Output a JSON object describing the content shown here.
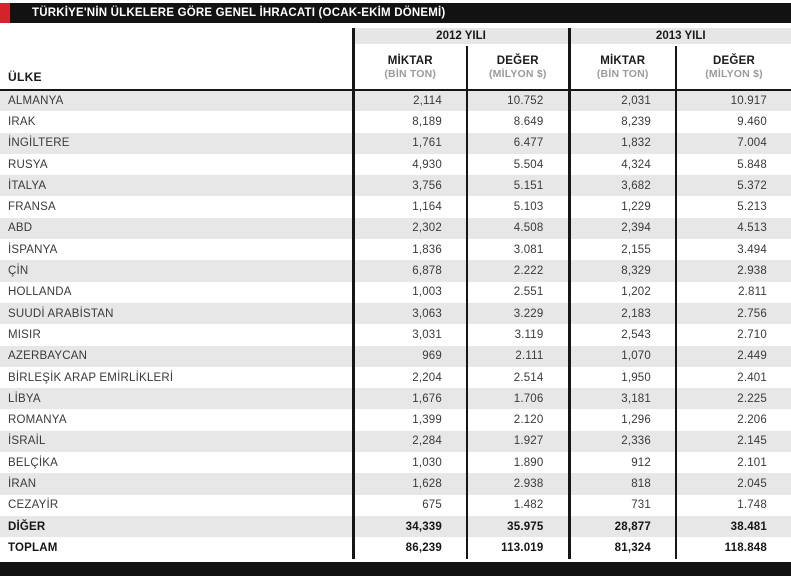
{
  "title": "TÜRKİYE'NİN ÜLKELERE GÖRE GENEL İHRACATI (OCAK-EKİM DÖNEMİ)",
  "table": {
    "country_header": "ÜLKE",
    "year_groups": [
      {
        "label": "2012 YILI"
      },
      {
        "label": "2013 YILI"
      }
    ],
    "sub_headers": {
      "miktar": "MİKTAR",
      "miktar_unit": "(BİN TON)",
      "deger": "DEĞER",
      "deger_unit": "(MİLYON $)"
    },
    "rows": [
      {
        "country": "ALMANYA",
        "m2012": "2,114",
        "d2012": "10.752",
        "m2013": "2,031",
        "d2013": "10.917"
      },
      {
        "country": "IRAK",
        "m2012": "8,189",
        "d2012": "8.649",
        "m2013": "8,239",
        "d2013": "9.460"
      },
      {
        "country": "İNGİLTERE",
        "m2012": "1,761",
        "d2012": "6.477",
        "m2013": "1,832",
        "d2013": "7.004"
      },
      {
        "country": "RUSYA",
        "m2012": "4,930",
        "d2012": "5.504",
        "m2013": "4,324",
        "d2013": "5.848"
      },
      {
        "country": "İTALYA",
        "m2012": "3,756",
        "d2012": "5.151",
        "m2013": "3,682",
        "d2013": "5.372"
      },
      {
        "country": "FRANSA",
        "m2012": "1,164",
        "d2012": "5.103",
        "m2013": "1,229",
        "d2013": "5.213"
      },
      {
        "country": "ABD",
        "m2012": "2,302",
        "d2012": "4.508",
        "m2013": "2,394",
        "d2013": "4.513"
      },
      {
        "country": "İSPANYA",
        "m2012": "1,836",
        "d2012": "3.081",
        "m2013": "2,155",
        "d2013": "3.494"
      },
      {
        "country": "ÇİN",
        "m2012": "6,878",
        "d2012": "2.222",
        "m2013": "8,329",
        "d2013": "2.938"
      },
      {
        "country": "HOLLANDA",
        "m2012": "1,003",
        "d2012": "2.551",
        "m2013": "1,202",
        "d2013": "2.811"
      },
      {
        "country": "SUUDİ ARABİSTAN",
        "m2012": "3,063",
        "d2012": "3.229",
        "m2013": "2,183",
        "d2013": "2.756"
      },
      {
        "country": "MISIR",
        "m2012": "3,031",
        "d2012": "3.119",
        "m2013": "2,543",
        "d2013": "2.710"
      },
      {
        "country": "AZERBAYCAN",
        "m2012": "969",
        "d2012": "2.111",
        "m2013": "1,070",
        "d2013": "2.449"
      },
      {
        "country": "BİRLEŞİK ARAP EMİRLİKLERİ",
        "m2012": "2,204",
        "d2012": "2.514",
        "m2013": "1,950",
        "d2013": "2.401"
      },
      {
        "country": "LİBYA",
        "m2012": "1,676",
        "d2012": "1.706",
        "m2013": "3,181",
        "d2013": "2.225"
      },
      {
        "country": "ROMANYA",
        "m2012": "1,399",
        "d2012": "2.120",
        "m2013": "1,296",
        "d2013": "2.206"
      },
      {
        "country": "İSRAİL",
        "m2012": "2,284",
        "d2012": "1.927",
        "m2013": "2,336",
        "d2013": "2.145"
      },
      {
        "country": "BELÇİKA",
        "m2012": "1,030",
        "d2012": "1.890",
        "m2013": "912",
        "d2013": "2.101"
      },
      {
        "country": "İRAN",
        "m2012": "1,628",
        "d2012": "2.938",
        "m2013": "818",
        "d2013": "2.045"
      },
      {
        "country": "CEZAYİR",
        "m2012": "675",
        "d2012": "1.482",
        "m2013": "731",
        "d2013": "1.748"
      },
      {
        "country": "DİĞER",
        "bold": true,
        "m2012": "34,339",
        "d2012": "35.975",
        "m2013": "28,877",
        "d2013": "38.481"
      },
      {
        "country": "TOPLAM",
        "bold": true,
        "m2012": "86,239",
        "d2012": "113.019",
        "m2013": "81,324",
        "d2013": "118.848"
      }
    ]
  },
  "colors": {
    "accent_red": "#d6222a",
    "bar_black": "#121212",
    "stripe_gray": "#e7e7e7",
    "header_gray": "#e6e6e6",
    "unit_gray": "#9b9b9b"
  }
}
